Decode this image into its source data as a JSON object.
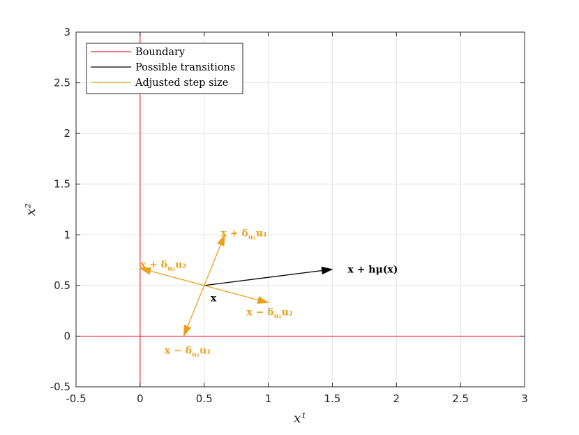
{
  "chart_data": {
    "type": "line",
    "xlabel": "x¹",
    "ylabel": "x²",
    "xlim": [
      -0.5,
      3
    ],
    "ylim": [
      -0.5,
      3
    ],
    "xticks": [
      -0.5,
      0,
      0.5,
      1,
      1.5,
      2,
      2.5,
      3
    ],
    "yticks": [
      -0.5,
      0,
      0.5,
      1,
      1.5,
      2,
      2.5,
      3
    ],
    "xtick_labels": [
      "-0.5",
      "0",
      "0.5",
      "1",
      "1.5",
      "2",
      "2.5",
      "3"
    ],
    "ytick_labels": [
      "-0.5",
      "0",
      "0.5",
      "1",
      "1.5",
      "2",
      "2.5",
      "3"
    ],
    "grid": true,
    "legend_position": "top-left",
    "colors": {
      "boundary": "#e8303a",
      "transition": "#000000",
      "adjusted": "#e6a21d",
      "grid": "#e2e2e2",
      "axis": "#262626"
    },
    "series": [
      {
        "name": "Boundary",
        "role": "boundary",
        "lines": [
          {
            "x": [
              0,
              0
            ],
            "y": [
              -0.5,
              3
            ]
          },
          {
            "x": [
              -0.5,
              3
            ],
            "y": [
              0,
              0
            ]
          }
        ]
      },
      {
        "name": "Possible transitions",
        "role": "transition",
        "arrows": [
          {
            "from": [
              0.5,
              0.5
            ],
            "to": [
              1.5,
              0.66
            ]
          }
        ]
      },
      {
        "name": "Adjusted step size",
        "role": "adjusted",
        "arrows": [
          {
            "from": [
              0.5,
              0.5
            ],
            "to": [
              0.66,
              1.0
            ]
          },
          {
            "from": [
              0.5,
              0.5
            ],
            "to": [
              1.0,
              0.33
            ]
          },
          {
            "from": [
              0.5,
              0.5
            ],
            "to": [
              0.0,
              0.67
            ]
          },
          {
            "from": [
              0.5,
              0.5
            ],
            "to": [
              0.34,
              0.0
            ]
          }
        ]
      }
    ],
    "annotations": [
      {
        "id": "x",
        "x": 0.55,
        "y": 0.38,
        "anchor": "start",
        "role": "transition",
        "parts": [
          [
            "x",
            ""
          ]
        ]
      },
      {
        "id": "x-plus-h-mu",
        "x": 1.62,
        "y": 0.66,
        "anchor": "start",
        "role": "transition",
        "parts": [
          [
            "x + hμ(x)",
            ""
          ]
        ]
      },
      {
        "id": "x-plus-delta-u1",
        "x": 0.63,
        "y": 1.02,
        "anchor": "start",
        "role": "adjusted",
        "parts": [
          [
            "x + δ",
            ""
          ],
          [
            "u₁",
            "sub"
          ],
          [
            "u₁",
            ""
          ]
        ]
      },
      {
        "id": "x-plus-delta-u2",
        "x": 0.0,
        "y": 0.71,
        "anchor": "start",
        "role": "adjusted",
        "parts": [
          [
            "x + δ",
            ""
          ],
          [
            "u₂",
            "sub"
          ],
          [
            "u₂",
            ""
          ]
        ]
      },
      {
        "id": "x-minus-delta-u2",
        "x": 0.83,
        "y": 0.24,
        "anchor": "start",
        "role": "adjusted",
        "parts": [
          [
            "x − δ",
            ""
          ],
          [
            "u₂",
            "sub"
          ],
          [
            "u₂",
            ""
          ]
        ]
      },
      {
        "id": "x-minus-delta-u1",
        "x": 0.19,
        "y": -0.14,
        "anchor": "start",
        "role": "adjusted",
        "parts": [
          [
            "x − δ",
            ""
          ],
          [
            "u₁",
            "sub"
          ],
          [
            "u₁",
            ""
          ]
        ]
      }
    ]
  }
}
